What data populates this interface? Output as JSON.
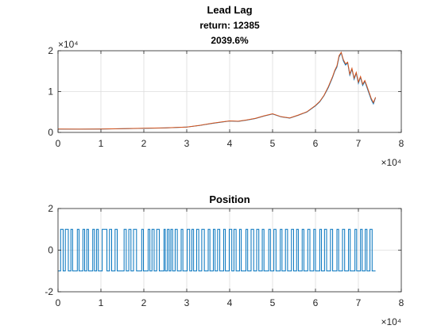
{
  "figure": {
    "background": "#ffffff",
    "axes_color": "#262626",
    "grid_color": "#dcdcdc"
  },
  "chart_data": [
    {
      "type": "line",
      "title_lines": [
        "Lead Lag",
        "return: 12385",
        "2039.6%"
      ],
      "xlabel": "",
      "ylabel": "",
      "xlim": [
        0,
        80000
      ],
      "ylim": [
        0,
        20000
      ],
      "x_ticks": [
        0,
        10000,
        20000,
        30000,
        40000,
        50000,
        60000,
        70000,
        80000
      ],
      "x_tick_labels": [
        "0",
        "1",
        "2",
        "3",
        "4",
        "5",
        "6",
        "7",
        "8"
      ],
      "y_ticks": [
        0,
        10000,
        20000
      ],
      "y_tick_labels": [
        "0",
        "1",
        "2"
      ],
      "x_exponent": "×10⁴",
      "y_exponent": "×10⁴",
      "grid": true,
      "series": [
        {
          "color": "#0072bd",
          "x": [
            0,
            5000,
            10000,
            15000,
            20000,
            25000,
            30000,
            33000,
            36000,
            38000,
            40000,
            42000,
            44000,
            46000,
            48000,
            50000,
            52000,
            54000,
            56000,
            58000,
            60000,
            61000,
            62000,
            63000,
            64000,
            64500,
            65000,
            65500,
            66000,
            66500,
            67000,
            67500,
            68000,
            68500,
            69000,
            69500,
            70000,
            70500,
            71000,
            71500,
            72000,
            72500,
            73000,
            73500,
            74000
          ],
          "y": [
            800,
            800,
            820,
            900,
            1000,
            1100,
            1300,
            1700,
            2200,
            2500,
            2800,
            2700,
            3000,
            3400,
            4000,
            4500,
            3800,
            3500,
            4200,
            5000,
            6500,
            7500,
            9000,
            11000,
            13500,
            15000,
            16000,
            18500,
            19500,
            17500,
            16500,
            17000,
            14000,
            15500,
            13000,
            14500,
            12000,
            13500,
            11500,
            12500,
            11000,
            9500,
            8000,
            7000,
            8500
          ]
        },
        {
          "color": "#d95319",
          "x": [
            0,
            5000,
            10000,
            15000,
            20000,
            25000,
            30000,
            33000,
            36000,
            38000,
            40000,
            42000,
            44000,
            46000,
            48000,
            50000,
            52000,
            54000,
            56000,
            58000,
            60000,
            61000,
            62000,
            63000,
            64000,
            64500,
            65000,
            65500,
            66000,
            66500,
            67000,
            67500,
            68000,
            68500,
            69000,
            69500,
            70000,
            70500,
            71000,
            71500,
            72000,
            72500,
            73000,
            73500,
            74000
          ],
          "y": [
            820,
            810,
            830,
            910,
            1010,
            1120,
            1310,
            1720,
            2250,
            2550,
            2820,
            2750,
            3050,
            3450,
            4050,
            4550,
            3850,
            3550,
            4250,
            5050,
            6600,
            7600,
            9100,
            11200,
            13700,
            15200,
            16300,
            18800,
            19600,
            17800,
            16800,
            17200,
            14300,
            15700,
            13300,
            14700,
            12300,
            13700,
            11800,
            12700,
            11300,
            9800,
            8300,
            7300,
            8600
          ]
        }
      ]
    },
    {
      "type": "line",
      "title_lines": [
        "Position"
      ],
      "xlabel": "",
      "ylabel": "",
      "xlim": [
        0,
        80000
      ],
      "ylim": [
        -2,
        2
      ],
      "x_ticks": [
        0,
        10000,
        20000,
        30000,
        40000,
        50000,
        60000,
        70000,
        80000
      ],
      "x_tick_labels": [
        "0",
        "1",
        "2",
        "3",
        "4",
        "5",
        "6",
        "7",
        "8"
      ],
      "y_ticks": [
        -2,
        0,
        2
      ],
      "y_tick_labels": [
        "-2",
        "0",
        "2"
      ],
      "x_exponent": "×10⁴",
      "grid": true,
      "series": [
        {
          "color": "#0072bd",
          "step": true,
          "x_start": 0,
          "x_end": 74000,
          "initial_value": -1,
          "switch_x": [
            600,
            1200,
            1700,
            2400,
            3000,
            3400,
            4500,
            4900,
            5800,
            6200,
            6700,
            7100,
            8100,
            8500,
            9000,
            9400,
            10300,
            11400,
            12000,
            12500,
            13300,
            13800,
            15400,
            15900,
            16500,
            17000,
            17600,
            18300,
            19500,
            19900,
            21000,
            21400,
            21900,
            22400,
            23000,
            23600,
            24700,
            25000,
            25500,
            25900,
            26300,
            26700,
            27300,
            27800,
            28700,
            29100,
            30100,
            30700,
            31200,
            31600,
            32300,
            32800,
            33500,
            34100,
            35000,
            35400,
            36200,
            36600,
            37200,
            37700,
            38600,
            39000,
            39900,
            40500,
            41000,
            41500,
            42300,
            42700,
            43800,
            44200,
            45000,
            45600,
            46300,
            46800,
            47600,
            48000,
            49100,
            49500,
            50300,
            50800,
            51800,
            52200,
            53000,
            53500,
            54400,
            54900,
            55600,
            56000,
            56900,
            57300,
            58200,
            58700,
            59600,
            60000,
            61000,
            61400,
            62100,
            62600,
            63500,
            64000,
            65000,
            65400,
            66300,
            66800,
            67700,
            68100,
            69200,
            69600,
            70500,
            70900,
            71600,
            72000,
            72700,
            73200
          ]
        }
      ]
    }
  ]
}
